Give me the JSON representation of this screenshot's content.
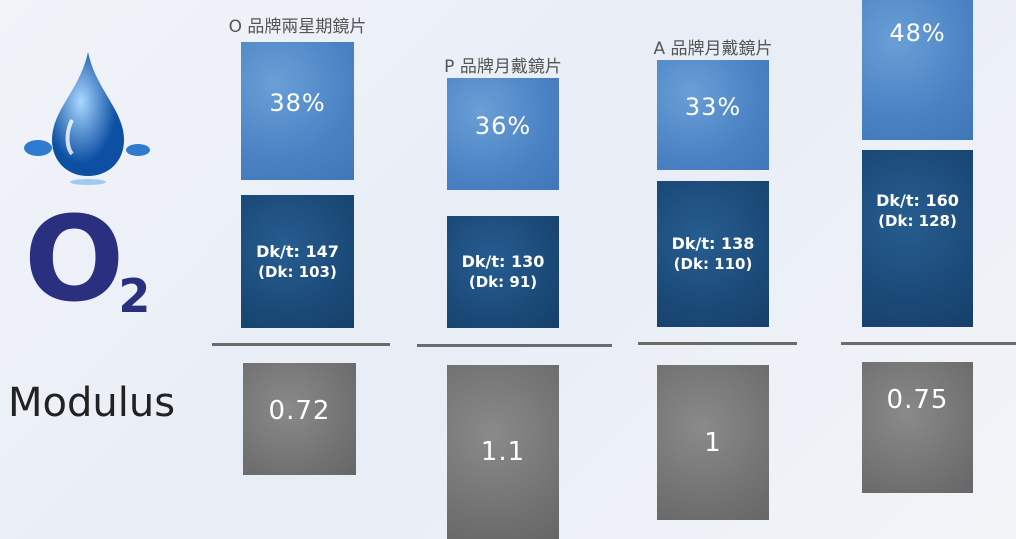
{
  "o2": {
    "letter": "O",
    "sub": "2"
  },
  "modulus_label": "Modulus",
  "brands": [
    {
      "name": "O 品牌兩星期鏡片",
      "water": "38%",
      "dkt": "Dk/t: 147",
      "dk": "(Dk: 103)",
      "modulus": "0.72"
    },
    {
      "name": "P 品牌月戴鏡片",
      "water": "36%",
      "dkt": "Dk/t: 130",
      "dk": "(Dk: 91)",
      "modulus": "1.1"
    },
    {
      "name": "A 品牌月戴鏡片",
      "water": "33%",
      "dkt": "Dk/t: 138",
      "dk": "(Dk: 110)",
      "modulus": "1"
    },
    {
      "water": "48%",
      "dkt": "Dk/t: 160",
      "dk": "(Dk: 128)",
      "modulus": "0.75"
    }
  ]
}
